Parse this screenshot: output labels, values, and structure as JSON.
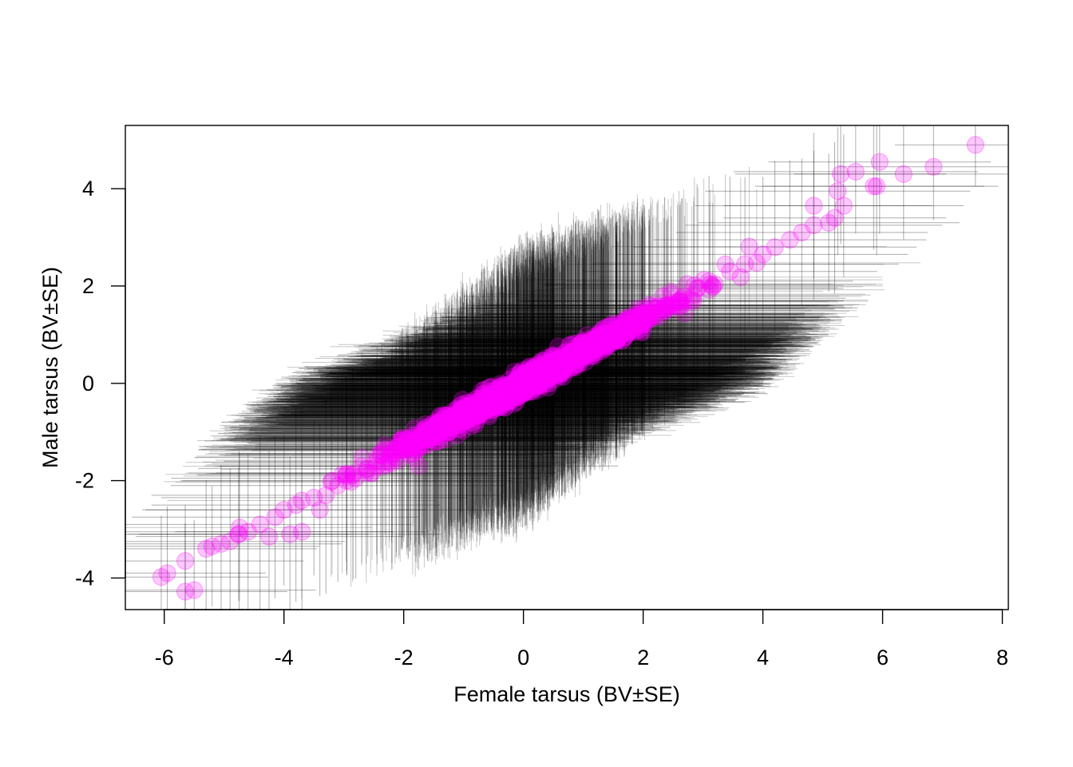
{
  "chart_data": {
    "type": "scatter",
    "title": "",
    "xlabel": "Female tarsus (BV±SE)",
    "ylabel": "Male tarsus (BV±SE)",
    "xlim": [
      -6.65,
      8.1
    ],
    "ylim": [
      -4.65,
      5.3
    ],
    "xticks": [
      -6,
      -4,
      -2,
      0,
      2,
      4,
      6,
      8
    ],
    "yticks": [
      -4,
      -2,
      0,
      2,
      4
    ],
    "grid": false,
    "legend": "none",
    "colors": {
      "points": "#ff00ff",
      "error_bars": "#000000",
      "axes": "#000000"
    },
    "error_bars": {
      "x_se_at_zero": 3.6,
      "y_se_at_zero": 2.55,
      "se_trend": "standard error shrinks toward the extremes of the distribution"
    },
    "series": [
      {
        "points": [
          [
            -6.05,
            -3.98
          ],
          [
            -5.95,
            -3.9
          ],
          [
            -5.65,
            -4.28
          ],
          [
            -5.5,
            -4.25
          ],
          [
            -5.65,
            -3.65
          ],
          [
            -5.3,
            -3.4
          ],
          [
            -5.2,
            -3.35
          ],
          [
            -5.05,
            -3.3
          ],
          [
            -4.9,
            -3.25
          ],
          [
            -4.75,
            -3.1
          ],
          [
            -4.6,
            -3.05
          ],
          [
            -4.4,
            -2.9
          ],
          [
            -4.25,
            -3.15
          ],
          [
            -4.15,
            -2.75
          ],
          [
            -4.0,
            -2.6
          ],
          [
            -3.9,
            -3.1
          ],
          [
            -3.8,
            -2.5
          ],
          [
            -3.7,
            -3.05
          ],
          [
            -3.5,
            -2.35
          ],
          [
            -3.4,
            -2.6
          ],
          [
            -3.3,
            -2.3
          ],
          [
            -3.1,
            -2.1
          ],
          [
            -2.95,
            -2.0
          ],
          [
            -2.8,
            -1.95
          ],
          [
            -2.6,
            -1.75
          ],
          [
            -2.45,
            -1.6
          ],
          [
            -2.2,
            -1.45
          ],
          [
            -2.0,
            -1.3
          ],
          [
            -1.75,
            -1.15
          ],
          [
            -1.75,
            -1.7
          ],
          [
            -1.5,
            -1.0
          ],
          [
            -1.2,
            -0.7
          ],
          [
            -1.0,
            -0.65
          ],
          [
            -0.75,
            -0.5
          ],
          [
            -0.5,
            -0.35
          ],
          [
            -0.3,
            -0.2
          ],
          [
            -0.1,
            -0.05
          ],
          [
            0.15,
            0.1
          ],
          [
            0.35,
            0.25
          ],
          [
            0.55,
            0.35
          ],
          [
            0.8,
            0.5
          ],
          [
            1.05,
            0.65
          ],
          [
            1.3,
            0.85
          ],
          [
            1.55,
            1.0
          ],
          [
            1.85,
            1.2
          ],
          [
            2.1,
            1.35
          ],
          [
            2.35,
            1.55
          ],
          [
            2.65,
            1.75
          ],
          [
            2.9,
            1.95
          ],
          [
            3.1,
            2.1
          ],
          [
            3.45,
            2.3
          ],
          [
            3.7,
            2.45
          ],
          [
            4.0,
            2.65
          ],
          [
            4.2,
            2.8
          ],
          [
            4.45,
            2.95
          ],
          [
            4.65,
            3.1
          ],
          [
            4.85,
            3.25
          ],
          [
            5.1,
            3.3
          ],
          [
            5.2,
            3.4
          ],
          [
            5.35,
            3.65
          ],
          [
            4.85,
            3.65
          ],
          [
            5.25,
            3.95
          ],
          [
            5.3,
            4.3
          ],
          [
            5.55,
            4.35
          ],
          [
            5.85,
            4.05
          ],
          [
            5.9,
            4.05
          ],
          [
            5.95,
            4.55
          ],
          [
            6.35,
            4.3
          ],
          [
            6.85,
            4.45
          ],
          [
            7.55,
            4.9
          ]
        ]
      }
    ]
  }
}
